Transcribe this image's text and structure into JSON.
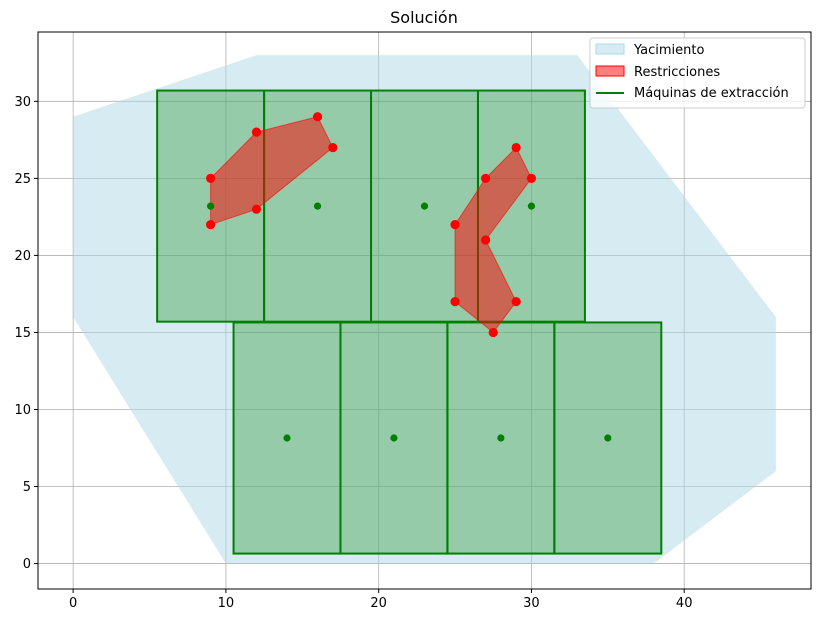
{
  "chart_data": {
    "type": "scatter",
    "title": "Solución",
    "xlabel": "",
    "ylabel": "",
    "xlim": [
      -2.3,
      48.3
    ],
    "ylim": [
      -1.65,
      34.5
    ],
    "x_ticks": [
      0,
      10,
      20,
      30,
      40
    ],
    "y_ticks": [
      0,
      5,
      10,
      15,
      20,
      25,
      30
    ],
    "grid": true,
    "legend_position": "top-right",
    "legend": [
      {
        "label": "Yacimiento",
        "kind": "patch",
        "color": "#add8e6"
      },
      {
        "label": "Restricciones",
        "kind": "patch",
        "color": "#ff0000"
      },
      {
        "label": "Máquinas de extracción",
        "kind": "line",
        "color": "#008000"
      }
    ],
    "deposit_polygon": [
      [
        0,
        29
      ],
      [
        12,
        33
      ],
      [
        33,
        33
      ],
      [
        46,
        16
      ],
      [
        46,
        6
      ],
      [
        38,
        0
      ],
      [
        10,
        0
      ],
      [
        0,
        16
      ]
    ],
    "restrictions": [
      {
        "name": "restriction-1",
        "points": [
          [
            9,
            25
          ],
          [
            12,
            28
          ],
          [
            16,
            29
          ],
          [
            17,
            27
          ],
          [
            12,
            23
          ],
          [
            9,
            22
          ]
        ]
      },
      {
        "name": "restriction-2",
        "points": [
          [
            25,
            22
          ],
          [
            27,
            25
          ],
          [
            29,
            27
          ],
          [
            30,
            25
          ],
          [
            27,
            21
          ],
          [
            29,
            17
          ],
          [
            27.5,
            15
          ],
          [
            25,
            17
          ]
        ]
      }
    ],
    "machines": [
      {
        "x0": 5.5,
        "x1": 12.5,
        "y0": 15.7,
        "y1": 30.7,
        "center": [
          9,
          23.2
        ]
      },
      {
        "x0": 12.5,
        "x1": 19.5,
        "y0": 15.7,
        "y1": 30.7,
        "center": [
          16,
          23.2
        ]
      },
      {
        "x0": 19.5,
        "x1": 26.5,
        "y0": 15.7,
        "y1": 30.7,
        "center": [
          23,
          23.2
        ]
      },
      {
        "x0": 26.5,
        "x1": 33.5,
        "y0": 15.7,
        "y1": 30.7,
        "center": [
          30,
          23.2
        ]
      },
      {
        "x0": 10.5,
        "x1": 17.5,
        "y0": 0.65,
        "y1": 15.65,
        "center": [
          14,
          8.15
        ]
      },
      {
        "x0": 17.5,
        "x1": 24.5,
        "y0": 0.65,
        "y1": 15.65,
        "center": [
          21,
          8.15
        ]
      },
      {
        "x0": 24.5,
        "x1": 31.5,
        "y0": 0.65,
        "y1": 15.65,
        "center": [
          28,
          8.15
        ]
      },
      {
        "x0": 31.5,
        "x1": 38.5,
        "y0": 0.65,
        "y1": 15.65,
        "center": [
          35,
          8.15
        ]
      }
    ],
    "colors": {
      "deposit_fill": "#add8e6",
      "restriction_fill": "#ff0000",
      "restriction_point": "#ff0000",
      "machine_fill": "#008000",
      "machine_edge": "#008000",
      "center_point": "#008000",
      "grid": "#b0b0b0"
    }
  }
}
